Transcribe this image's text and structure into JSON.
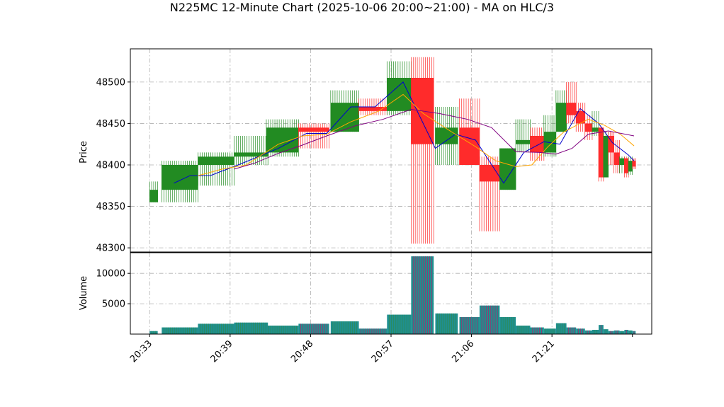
{
  "chart_data": {
    "type": "candlestick",
    "title": "N225MC 12-Minute Chart (2025-10-06 20:00~21:00) - MA on HLC/3",
    "price_panel": {
      "ylabel": "Price",
      "ylim": [
        48295,
        48540
      ],
      "yticks": [
        48300,
        48350,
        48400,
        48450,
        48500
      ],
      "grid": true
    },
    "volume_panel": {
      "ylabel": "Volume",
      "ylim": [
        0,
        13400
      ],
      "yticks": [
        5000,
        10000
      ],
      "grid": true
    },
    "x_range": [
      -2.4,
      62.4
    ],
    "x_ticks": [
      {
        "x": 0,
        "label": "20:33"
      },
      {
        "x": 10,
        "label": "20:39"
      },
      {
        "x": 20,
        "label": "20:48"
      },
      {
        "x": 30,
        "label": "20:57"
      },
      {
        "x": 40,
        "label": "21:06"
      },
      {
        "x": 50,
        "label": "21:21"
      },
      {
        "x": 60,
        "label": ""
      }
    ],
    "colors": {
      "up": "#228b22",
      "down": "#ff2b2b",
      "volume": "#1f8f8f",
      "ma_short": "#0000cc",
      "ma_mid": "#ffa500",
      "ma_long": "#800080"
    },
    "candles": [
      {
        "x": 0,
        "w": 1.0,
        "open": 48355,
        "high": 48380,
        "low": 48355,
        "close": 48370,
        "volume": 500
      },
      {
        "x": 1.5,
        "w": 4.5,
        "open": 48370,
        "high": 48405,
        "low": 48355,
        "close": 48400,
        "volume": 1100
      },
      {
        "x": 6.0,
        "w": 4.5,
        "open": 48400,
        "high": 48415,
        "low": 48375,
        "close": 48410,
        "volume": 1700
      },
      {
        "x": 10.5,
        "w": 4.2,
        "open": 48410,
        "high": 48435,
        "low": 48400,
        "close": 48415,
        "volume": 1900
      },
      {
        "x": 14.5,
        "w": 4.0,
        "open": 48415,
        "high": 48455,
        "low": 48410,
        "close": 48445,
        "volume": 1400
      },
      {
        "x": 18.5,
        "w": 3.8,
        "open": 48445,
        "high": 48450,
        "low": 48420,
        "close": 48440,
        "volume": 1700
      },
      {
        "x": 22.5,
        "w": 3.5,
        "open": 48440,
        "high": 48490,
        "low": 48440,
        "close": 48475,
        "volume": 2100
      },
      {
        "x": 26.0,
        "w": 3.5,
        "open": 48470,
        "high": 48480,
        "low": 48460,
        "close": 48465,
        "volume": 900
      },
      {
        "x": 29.5,
        "w": 3.0,
        "open": 48465,
        "high": 48525,
        "low": 48460,
        "close": 48505,
        "volume": 3200
      },
      {
        "x": 32.5,
        "w": 2.8,
        "open": 48505,
        "high": 48530,
        "low": 48305,
        "close": 48425,
        "volume": 12800
      },
      {
        "x": 35.5,
        "w": 2.8,
        "open": 48425,
        "high": 48470,
        "low": 48400,
        "close": 48445,
        "volume": 3400
      },
      {
        "x": 38.5,
        "w": 2.5,
        "open": 48445,
        "high": 48480,
        "low": 48400,
        "close": 48400,
        "volume": 2800
      },
      {
        "x": 41.0,
        "w": 2.5,
        "open": 48400,
        "high": 48410,
        "low": 48320,
        "close": 48380,
        "volume": 4700
      },
      {
        "x": 43.5,
        "w": 2.0,
        "open": 48370,
        "high": 48420,
        "low": 48370,
        "close": 48420,
        "volume": 2800
      },
      {
        "x": 45.5,
        "w": 1.8,
        "open": 48425,
        "high": 48455,
        "low": 48415,
        "close": 48430,
        "volume": 1400
      },
      {
        "x": 47.3,
        "w": 1.7,
        "open": 48435,
        "high": 48445,
        "low": 48405,
        "close": 48415,
        "volume": 1100
      },
      {
        "x": 49.0,
        "w": 1.5,
        "open": 48415,
        "high": 48460,
        "low": 48410,
        "close": 48440,
        "volume": 900
      },
      {
        "x": 50.5,
        "w": 1.3,
        "open": 48440,
        "high": 48490,
        "low": 48440,
        "close": 48475,
        "volume": 1800
      },
      {
        "x": 51.8,
        "w": 1.2,
        "open": 48475,
        "high": 48500,
        "low": 48450,
        "close": 48460,
        "volume": 1100
      },
      {
        "x": 53.0,
        "w": 1.1,
        "open": 48465,
        "high": 48475,
        "low": 48440,
        "close": 48450,
        "volume": 900
      },
      {
        "x": 54.1,
        "w": 0.9,
        "open": 48450,
        "high": 48460,
        "low": 48430,
        "close": 48440,
        "volume": 600
      },
      {
        "x": 55.0,
        "w": 0.8,
        "open": 48440,
        "high": 48465,
        "low": 48435,
        "close": 48445,
        "volume": 700
      },
      {
        "x": 55.8,
        "w": 0.6,
        "open": 48445,
        "high": 48445,
        "low": 48380,
        "close": 48385,
        "volume": 1500
      },
      {
        "x": 56.4,
        "w": 0.6,
        "open": 48385,
        "high": 48440,
        "low": 48385,
        "close": 48435,
        "volume": 800
      },
      {
        "x": 57.0,
        "w": 0.7,
        "open": 48435,
        "high": 48440,
        "low": 48400,
        "close": 48415,
        "volume": 500
      },
      {
        "x": 57.7,
        "w": 0.7,
        "open": 48415,
        "high": 48430,
        "low": 48390,
        "close": 48400,
        "volume": 600
      },
      {
        "x": 58.4,
        "w": 0.6,
        "open": 48400,
        "high": 48410,
        "low": 48390,
        "close": 48408,
        "volume": 500
      },
      {
        "x": 59.0,
        "w": 0.5,
        "open": 48408,
        "high": 48410,
        "low": 48385,
        "close": 48390,
        "volume": 700
      },
      {
        "x": 59.5,
        "w": 0.5,
        "open": 48392,
        "high": 48410,
        "low": 48388,
        "close": 48405,
        "volume": 600
      },
      {
        "x": 60.0,
        "w": 0.4,
        "open": 48405,
        "high": 48408,
        "low": 48395,
        "close": 48398,
        "volume": 500
      }
    ],
    "series": [
      {
        "color": "#0000cc",
        "x": [
          3,
          5,
          7.5,
          11,
          13.5,
          16,
          19.5,
          22,
          25,
          28,
          31.5,
          35.5,
          38,
          40.5,
          44,
          46.5,
          49,
          51,
          53.5,
          55.8,
          57.5,
          59.5,
          60.2
        ],
        "values": [
          48378,
          48387,
          48387,
          48400,
          48410,
          48420,
          48438,
          48438,
          48470,
          48470,
          48500,
          48420,
          48437,
          48430,
          48378,
          48415,
          48428,
          48425,
          48468,
          48450,
          48427,
          48412,
          48405
        ]
      },
      {
        "color": "#ffa500",
        "x": [
          6,
          9,
          12,
          16,
          19,
          22,
          25,
          28.5,
          31.5,
          34,
          37.5,
          40.5,
          43,
          45.5,
          47.5,
          49.5,
          51.5,
          54.5,
          56.5,
          58.5,
          60.2
        ],
        "values": [
          48387,
          48395,
          48400,
          48425,
          48435,
          48437,
          48452,
          48465,
          48485,
          48462,
          48440,
          48422,
          48405,
          48398,
          48400,
          48422,
          48440,
          48455,
          48448,
          48437,
          48423
        ]
      },
      {
        "color": "#800080",
        "x": [
          10.5,
          13,
          16,
          19,
          22,
          25.5,
          29,
          32.5,
          36,
          39.5,
          42.5,
          45.5,
          48.5,
          50.5,
          52.5,
          54.5,
          57,
          60.2
        ],
        "values": [
          48395,
          48402,
          48414,
          48424,
          48435,
          48447,
          48455,
          48467,
          48462,
          48455,
          48445,
          48416,
          48415,
          48413,
          48420,
          48437,
          48441,
          48435
        ]
      }
    ]
  }
}
